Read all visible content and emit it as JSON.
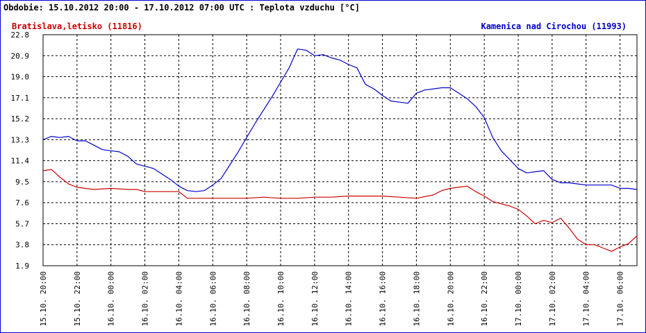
{
  "chart_data": {
    "type": "line",
    "title": "Obdobie: 15.10.2012 20:00 - 17.10.2012 07:00 UTC : Teplota vzduchu [°C]",
    "xlabel": "",
    "ylabel": "",
    "ylim": [
      1.9,
      22.8
    ],
    "y_ticks": [
      "22.8",
      "20.9",
      "19.0",
      "17.1",
      "15.2",
      "13.3",
      "11.4",
      "9.5",
      "7.6",
      "5.7",
      "3.8",
      "1.9"
    ],
    "x_range_hours": [
      0,
      35
    ],
    "x_ticks": [
      {
        "h": 0,
        "label": "15.10. 20:00"
      },
      {
        "h": 2,
        "label": "15.10. 22:00"
      },
      {
        "h": 4,
        "label": "16.10. 00:00"
      },
      {
        "h": 6,
        "label": "16.10. 02:00"
      },
      {
        "h": 8,
        "label": "16.10. 04:00"
      },
      {
        "h": 10,
        "label": "16.10. 06:00"
      },
      {
        "h": 12,
        "label": "16.10. 08:00"
      },
      {
        "h": 14,
        "label": "16.10. 10:00"
      },
      {
        "h": 16,
        "label": "16.10. 12:00"
      },
      {
        "h": 18,
        "label": "16.10. 14:00"
      },
      {
        "h": 20,
        "label": "16.10. 16:00"
      },
      {
        "h": 22,
        "label": "16.10. 18:00"
      },
      {
        "h": 24,
        "label": "16.10. 20:00"
      },
      {
        "h": 26,
        "label": "16.10. 22:00"
      },
      {
        "h": 28,
        "label": "17.10. 00:00"
      },
      {
        "h": 30,
        "label": "17.10. 02:00"
      },
      {
        "h": 32,
        "label": "17.10. 04:00"
      },
      {
        "h": 34,
        "label": "17.10. 06:00"
      }
    ],
    "grid": true,
    "legend": [
      {
        "label": "Bratislava,letisko (11816)",
        "color": "#cc0000",
        "position": "top-left"
      },
      {
        "label": "Kamenica nad Cirochou (11993)",
        "color": "#0000cc",
        "position": "top-right"
      }
    ],
    "series": [
      {
        "name": "Kamenica nad Cirochou (11993)",
        "color": "#0000cc",
        "points": [
          [
            0,
            13.3
          ],
          [
            0.5,
            13.6
          ],
          [
            1,
            13.5
          ],
          [
            1.5,
            13.6
          ],
          [
            2,
            13.2
          ],
          [
            2.5,
            13.2
          ],
          [
            3,
            12.8
          ],
          [
            3.5,
            12.4
          ],
          [
            4,
            12.3
          ],
          [
            4.5,
            12.2
          ],
          [
            5,
            11.8
          ],
          [
            5.5,
            11.1
          ],
          [
            6,
            10.9
          ],
          [
            6.5,
            10.7
          ],
          [
            7,
            10.2
          ],
          [
            7.5,
            9.7
          ],
          [
            8,
            9.1
          ],
          [
            8.5,
            8.7
          ],
          [
            9,
            8.6
          ],
          [
            9.5,
            8.7
          ],
          [
            10,
            9.2
          ],
          [
            10.5,
            9.8
          ],
          [
            11,
            11.0
          ],
          [
            11.5,
            12.2
          ],
          [
            12,
            13.5
          ],
          [
            12.5,
            14.8
          ],
          [
            13,
            16.0
          ],
          [
            13.5,
            17.2
          ],
          [
            14,
            18.5
          ],
          [
            14.5,
            19.8
          ],
          [
            15,
            21.5
          ],
          [
            15.5,
            21.4
          ],
          [
            16,
            20.9
          ],
          [
            16.5,
            21.0
          ],
          [
            17,
            20.7
          ],
          [
            17.5,
            20.5
          ],
          [
            18,
            20.1
          ],
          [
            18.5,
            19.8
          ],
          [
            19,
            18.3
          ],
          [
            19.5,
            17.9
          ],
          [
            20,
            17.3
          ],
          [
            20.5,
            16.8
          ],
          [
            21,
            16.7
          ],
          [
            21.5,
            16.6
          ],
          [
            22,
            17.5
          ],
          [
            22.5,
            17.8
          ],
          [
            23,
            17.9
          ],
          [
            23.5,
            18.0
          ],
          [
            24,
            18.0
          ],
          [
            24.5,
            17.5
          ],
          [
            25,
            17.0
          ],
          [
            25.5,
            16.3
          ],
          [
            26,
            15.3
          ],
          [
            26.5,
            13.5
          ],
          [
            27,
            12.3
          ],
          [
            27.5,
            11.5
          ],
          [
            28,
            10.7
          ],
          [
            28.5,
            10.3
          ],
          [
            29,
            10.4
          ],
          [
            29.5,
            10.5
          ],
          [
            30,
            9.7
          ],
          [
            30.5,
            9.4
          ],
          [
            31,
            9.4
          ],
          [
            31.5,
            9.3
          ],
          [
            32,
            9.2
          ],
          [
            32.5,
            9.2
          ],
          [
            33,
            9.2
          ],
          [
            33.5,
            9.2
          ],
          [
            34,
            8.9
          ],
          [
            34.5,
            8.9
          ],
          [
            35,
            8.8
          ]
        ]
      },
      {
        "name": "Bratislava,letisko (11816)",
        "color": "#cc0000",
        "points": [
          [
            0,
            10.5
          ],
          [
            0.5,
            10.6
          ],
          [
            1,
            9.9
          ],
          [
            1.5,
            9.3
          ],
          [
            2,
            9.0
          ],
          [
            2.5,
            8.9
          ],
          [
            3,
            8.8
          ],
          [
            4,
            8.9
          ],
          [
            5,
            8.8
          ],
          [
            5.5,
            8.8
          ],
          [
            6,
            8.6
          ],
          [
            7,
            8.6
          ],
          [
            8,
            8.6
          ],
          [
            8.5,
            8.0
          ],
          [
            9,
            8.0
          ],
          [
            10,
            8.0
          ],
          [
            11,
            8.0
          ],
          [
            12,
            8.0
          ],
          [
            13,
            8.1
          ],
          [
            14,
            8.0
          ],
          [
            15,
            8.0
          ],
          [
            16,
            8.1
          ],
          [
            17,
            8.1
          ],
          [
            18,
            8.2
          ],
          [
            19,
            8.2
          ],
          [
            20,
            8.2
          ],
          [
            21,
            8.1
          ],
          [
            22,
            8.0
          ],
          [
            23,
            8.3
          ],
          [
            23.5,
            8.7
          ],
          [
            24,
            8.9
          ],
          [
            24.5,
            9.0
          ],
          [
            25,
            9.1
          ],
          [
            25.5,
            8.6
          ],
          [
            26,
            8.2
          ],
          [
            26.5,
            7.7
          ],
          [
            27,
            7.5
          ],
          [
            27.5,
            7.3
          ],
          [
            28,
            7.0
          ],
          [
            28.5,
            6.4
          ],
          [
            29,
            5.7
          ],
          [
            29.5,
            6.0
          ],
          [
            30,
            5.8
          ],
          [
            30.5,
            6.2
          ],
          [
            31,
            5.3
          ],
          [
            31.5,
            4.3
          ],
          [
            32,
            3.8
          ],
          [
            32.5,
            3.8
          ],
          [
            33,
            3.5
          ],
          [
            33.5,
            3.2
          ],
          [
            34,
            3.6
          ],
          [
            34.5,
            3.9
          ],
          [
            35,
            4.6
          ]
        ]
      }
    ]
  }
}
